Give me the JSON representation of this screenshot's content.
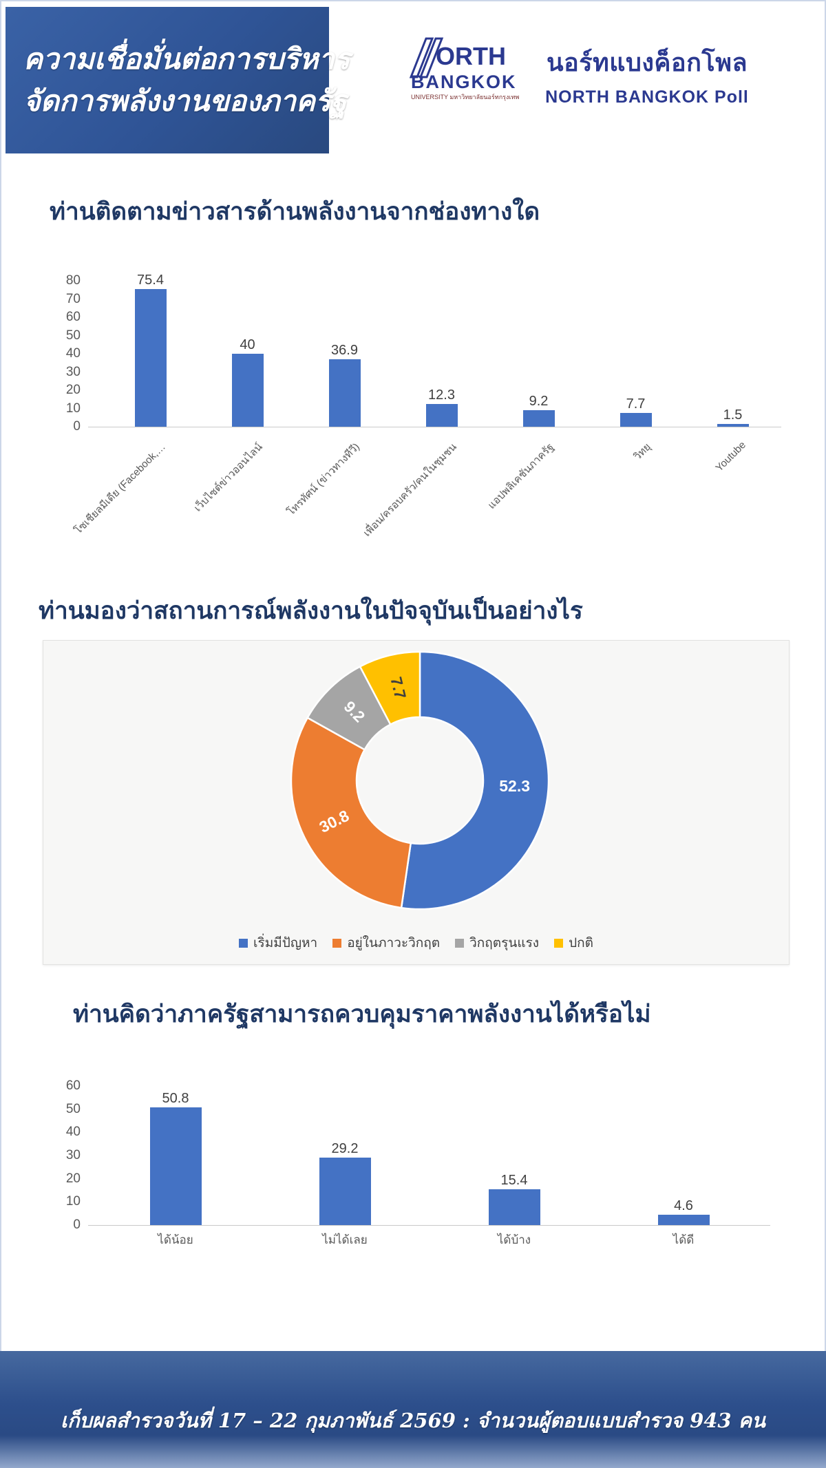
{
  "header": {
    "title_line1": "ความเชื่อมั่นต่อการบริหาร",
    "title_line2": "จัดการพลังงานของภาครัฐ",
    "logo": {
      "name_top": "ORTH",
      "name_bottom": "BANGKOK",
      "caption": "UNIVERSITY มหาวิทยาลัยนอร์ทกรุงเทพ",
      "poll_name_thai": "นอร์ทแบงค็อกโพล",
      "poll_name_english": "NORTH BANGKOK Poll"
    }
  },
  "chart_data": [
    {
      "type": "bar",
      "title": "ท่านติดตามข่าวสารด้านพลังงานจากช่องทางใด",
      "categories": [
        "โซเชียลมีเดีย (Facebook,…",
        "เว็บไซต์ข่าวออนไลน์",
        "โทรทัศน์ (ข่าวทางทีวี)",
        "เพื่อน/ครอบครัว/คนในชุมชน",
        "แอปพลิเคชันภาครัฐ",
        "วิทยุ",
        "Youtube"
      ],
      "values": [
        75.4,
        40,
        36.9,
        12.3,
        9.2,
        7.7,
        1.5
      ],
      "xlabel": "",
      "ylabel": "",
      "ylim": [
        0,
        80
      ],
      "ytick_step": 10,
      "grid": false,
      "bar_color": "#4472C4",
      "rotated_labels": true
    },
    {
      "type": "donut",
      "title": "ท่านมองว่าสถานการณ์พลังงานในปัจจุบันเป็นอย่างไร",
      "segments": [
        {
          "label": "เริ่มมีปัญหา",
          "value": 52.3,
          "color": "#4472C4",
          "label_color": "#ffffff"
        },
        {
          "label": "อยู่ในภาวะวิกฤต",
          "value": 30.8,
          "color": "#ED7D31",
          "label_color": "#ffffff"
        },
        {
          "label": "วิกฤตรุนแรง",
          "value": 9.2,
          "color": "#A5A5A5",
          "label_color": "#ffffff"
        },
        {
          "label": "ปกติ",
          "value": 7.7,
          "color": "#FFC000",
          "label_color": "#404040"
        }
      ],
      "legend_position": "bottom"
    },
    {
      "type": "bar",
      "title": "ท่านคิดว่าภาครัฐสามารถควบคุมราคาพลังงานได้หรือไม่",
      "categories": [
        "ได้น้อย",
        "ไม่ได้เลย",
        "ได้บ้าง",
        "ได้ดี"
      ],
      "values": [
        50.8,
        29.2,
        15.4,
        4.6
      ],
      "xlabel": "",
      "ylabel": "",
      "ylim": [
        0,
        60
      ],
      "ytick_step": 10,
      "grid": false,
      "bar_color": "#4472C4",
      "rotated_labels": false
    }
  ],
  "footer": {
    "text": "เก็บผลสำรวจวันที่ 17 – 22 กุมภาพันธ์ 2569  : จำนวนผู้ตอบแบบสำรวจ 943 คน"
  },
  "colors": {
    "header_blue": "#2f5496",
    "title_navy": "#1f3864",
    "logo_navy": "#2b3990",
    "bar_blue": "#4472C4",
    "orange": "#ED7D31",
    "gray": "#A5A5A5",
    "yellow": "#FFC000"
  }
}
